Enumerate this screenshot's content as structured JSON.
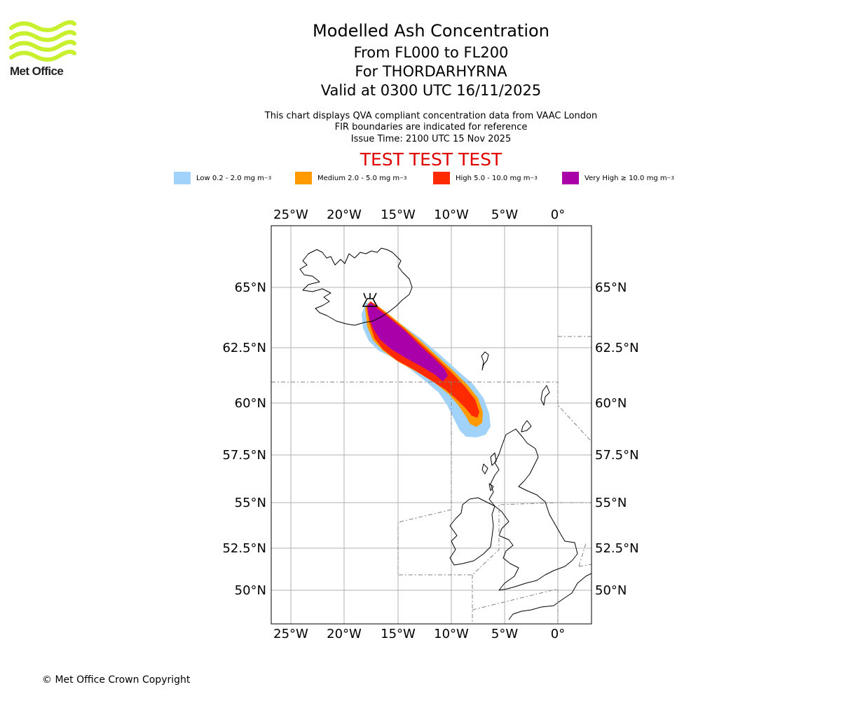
{
  "logo": {
    "text": "Met Office",
    "color": "#c8f02e"
  },
  "header": {
    "title": "Modelled Ash Concentration",
    "flight_levels": "From FL000 to FL200",
    "volcano": "For THORDARHYRNA",
    "valid_time": "Valid at 0300 UTC 16/11/2025"
  },
  "notes": {
    "line1": "This chart displays QVA compliant concentration data from VAAC London",
    "line2": "FIR boundaries are indicated for reference",
    "line3": "Issue Time: 2100 UTC 15 Nov 2025"
  },
  "banner": "TEST TEST TEST",
  "legend": [
    {
      "label": "Low 0.2 - 2.0 mg m",
      "unit_exp": "−3",
      "color": "#a0d2fa"
    },
    {
      "label": "Medium 2.0 - 5.0 mg m",
      "unit_exp": "−3",
      "color": "#ff9a00"
    },
    {
      "label": "High 5.0 - 10.0 mg m",
      "unit_exp": "−3",
      "color": "#ff2a00"
    },
    {
      "label": "Very High ≥ 10.0 mg m",
      "unit_exp": "−3",
      "color": "#aa00aa"
    }
  ],
  "map": {
    "lon_ticks": [
      "25°W",
      "20°W",
      "15°W",
      "10°W",
      "5°W",
      "0°"
    ],
    "lat_ticks": [
      "65°N",
      "62.5°N",
      "60°N",
      "57.5°N",
      "55°N",
      "52.5°N",
      "50°N"
    ],
    "grid_color": "#b0b0b0"
  },
  "footer": {
    "copyright": "© Met Office Crown Copyright"
  }
}
